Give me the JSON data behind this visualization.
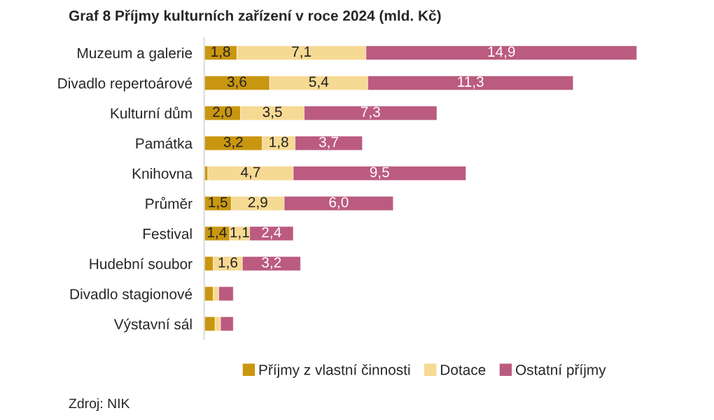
{
  "chart_data": {
    "type": "bar",
    "orientation": "horizontal",
    "stacked": true,
    "title": "Graf 8 Příjmy kulturních zařízení v roce 2024 (mld. Kč)",
    "categories": [
      "Muzeum a galerie",
      "Divadlo repertoárové",
      "Kulturní dům",
      "Památka",
      "Knihovna",
      "Průměr",
      "Festival",
      "Hudební soubor",
      "Divadlo stagionové",
      "Výstavní sál"
    ],
    "series": [
      {
        "name": "Příjmy z vlastní činnosti",
        "color": "#c9960f",
        "values": [
          1.8,
          3.6,
          2.0,
          3.2,
          0.2,
          1.5,
          1.4,
          0.5,
          0.5,
          0.6
        ],
        "value_labels": [
          "1,8",
          "3,6",
          "2,0",
          "3,2",
          null,
          "1,5",
          "1,4",
          null,
          null,
          null
        ]
      },
      {
        "name": "Dotace",
        "color": "#f6d993",
        "values": [
          7.1,
          5.4,
          3.5,
          1.8,
          4.7,
          2.9,
          1.1,
          1.6,
          0.3,
          0.3
        ],
        "value_labels": [
          "7,1",
          "5,4",
          "3,5",
          "1,8",
          "4,7",
          "2,9",
          "1,1",
          "1,6",
          null,
          null
        ]
      },
      {
        "name": "Ostatní příjmy",
        "color": "#bb5b7f",
        "values": [
          14.9,
          11.3,
          7.3,
          3.7,
          9.5,
          6.0,
          2.4,
          3.2,
          0.8,
          0.7
        ],
        "value_labels": [
          "14,9",
          "11,3",
          "7,3",
          "3,7",
          "9,5",
          "6,0",
          "2,4",
          "3,2",
          null,
          null
        ]
      }
    ],
    "tick_labels": "y",
    "grid": false,
    "legend": "bottom",
    "annotations": [
      "Zdroj: NIK"
    ]
  }
}
